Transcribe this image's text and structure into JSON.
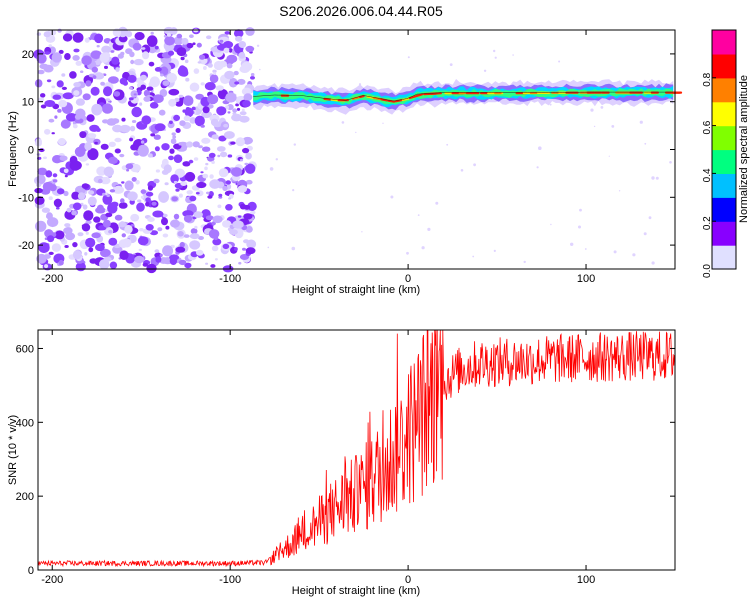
{
  "title": "S206.2026.006.04.44.R05",
  "chart_data": [
    {
      "type": "heatmap",
      "title": "S206.2026.006.04.44.R05",
      "xlabel": "Height of straight line (km)",
      "ylabel": "Frequency (Hz)",
      "xlim": [
        -208,
        150
      ],
      "ylim": [
        -25,
        25
      ],
      "x_ticks": [
        -200,
        -100,
        0,
        100
      ],
      "y_ticks": [
        -20,
        -10,
        0,
        10,
        20
      ],
      "x_tick_labels": [
        "-200",
        "-100",
        "0",
        "100"
      ],
      "y_tick_labels": [
        "-20",
        "-10",
        "0",
        "10",
        "20"
      ],
      "noise_region_x": [
        -208,
        -87
      ],
      "signal_line_freq": [
        [
          -87,
          11.0
        ],
        [
          -75,
          11.3
        ],
        [
          -60,
          11.2
        ],
        [
          -45,
          10.5
        ],
        [
          -35,
          10.2
        ],
        [
          -25,
          11.2
        ],
        [
          -15,
          10.5
        ],
        [
          -8,
          10.0
        ],
        [
          0,
          10.6
        ],
        [
          5,
          11.5
        ],
        [
          20,
          11.8
        ],
        [
          60,
          11.8
        ],
        [
          100,
          11.9
        ],
        [
          150,
          11.9
        ]
      ],
      "colorbar": {
        "label": "Normalized spectral amplitude",
        "range": [
          0,
          1
        ],
        "ticks": [
          0.0,
          0.2,
          0.4,
          0.6,
          0.8
        ],
        "tick_labels": [
          "0.0",
          "0.2",
          "0.4",
          "0.6",
          "0.8"
        ],
        "colors": [
          "#e0e0ff",
          "#8800ff",
          "#0000ff",
          "#00c0ff",
          "#00ff80",
          "#80ff00",
          "#ffff00",
          "#ff8000",
          "#ff0000",
          "#ff00a0"
        ]
      }
    },
    {
      "type": "line",
      "xlabel": "Height of straight line (km)",
      "ylabel": "SNR (10 * v/v)",
      "xlim": [
        -208,
        150
      ],
      "ylim": [
        0,
        650
      ],
      "x_ticks": [
        -200,
        -100,
        0,
        100
      ],
      "y_ticks": [
        0,
        200,
        400,
        600
      ],
      "x_tick_labels": [
        "-200",
        "-100",
        "0",
        "100"
      ],
      "y_tick_labels": [
        "0",
        "200",
        "400",
        "600"
      ],
      "color": "#ff0000",
      "series": [
        {
          "name": "SNR",
          "x": [
            -208,
            -150,
            -100,
            -80,
            -70,
            -60,
            -50,
            -40,
            -30,
            -20,
            -10,
            0,
            10,
            20,
            30,
            40,
            60,
            80,
            100,
            120,
            150
          ],
          "values": [
            18,
            18,
            18,
            20,
            55,
            95,
            130,
            170,
            200,
            240,
            300,
            360,
            440,
            510,
            545,
            560,
            565,
            570,
            575,
            578,
            580
          ]
        }
      ]
    }
  ]
}
